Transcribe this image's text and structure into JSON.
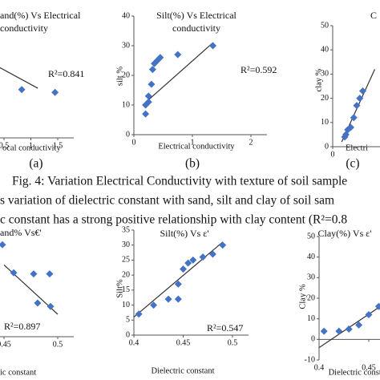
{
  "chart_data": [
    {
      "type": "scatter",
      "title": [
        "and(%) Vs Electrical",
        "conductivity"
      ],
      "x_label": "ocal conductivity",
      "panel": "(a)",
      "r2_label": "R²=0.841",
      "color": "#4472c4",
      "xlim": [
        0.5,
        1.5
      ],
      "ylim": [
        0,
        100
      ],
      "xticks": [
        0.5,
        1,
        1.5
      ],
      "x": [
        0.83,
        1.45
      ],
      "y": [
        35,
        33
      ],
      "trendline": {
        "x": [
          0.42,
          1.13
        ],
        "y": [
          51,
          36
        ]
      }
    },
    {
      "type": "scatter",
      "title": [
        "Silt(%) Vs Electrical",
        "conductivity"
      ],
      "x_label": "Electrical conductivity",
      "y_label": "silt %",
      "panel": "(b)",
      "r2_label": "R²=0.592",
      "color": "#4472c4",
      "xlim": [
        0,
        2
      ],
      "ylim": [
        0,
        40
      ],
      "xticks": [
        0,
        1,
        2
      ],
      "yticks": [
        0,
        10,
        20,
        30,
        40
      ],
      "x": [
        0.2,
        0.2,
        0.25,
        0.25,
        0.3,
        0.32,
        0.35,
        0.4,
        0.45,
        0.75,
        1.35
      ],
      "y": [
        7,
        10,
        11,
        13,
        17,
        22,
        24,
        25,
        26,
        27,
        30
      ],
      "trendline": {
        "x": [
          0.15,
          1.35
        ],
        "y": [
          10,
          31
        ]
      }
    },
    {
      "type": "scatter",
      "title": [
        "C"
      ],
      "x_label": "Electri",
      "y_label": "clay %",
      "panel": "(c)",
      "color": "#4472c4",
      "xlim": [
        0,
        1
      ],
      "ylim": [
        0,
        50
      ],
      "xticks": [
        0
      ],
      "yticks": [
        0,
        10,
        20,
        30,
        40,
        50
      ],
      "x": [
        0.2,
        0.22,
        0.25,
        0.3,
        0.35,
        0.4,
        0.45,
        0.5
      ],
      "y": [
        4,
        5,
        7,
        8,
        12,
        17,
        20,
        23
      ],
      "trendline": {
        "x": [
          0.15,
          0.7
        ],
        "y": [
          2,
          32
        ]
      }
    },
    {
      "type": "scatter",
      "title": [
        "and% Vs€'"
      ],
      "x_label": "ic constant",
      "r2_label": "R²=0.897",
      "color": "#4472c4",
      "xlim": [
        0.45,
        0.5
      ],
      "ylim": [
        0,
        100
      ],
      "xticks": [
        0.45,
        0.5
      ],
      "x": [
        0.4485,
        0.459,
        0.4776,
        0.4925,
        0.4813,
        0.4933
      ],
      "y": [
        82,
        57,
        56,
        56,
        30,
        27
      ],
      "trendline": {
        "x": [
          0.45,
          0.5
        ],
        "y": [
          64,
          20
        ]
      }
    },
    {
      "type": "scatter",
      "title": [
        "Silt(%) Vs ε'"
      ],
      "x_label": "Dielectric constant",
      "y_label": "Silt%",
      "r2_label": "R²=0.547",
      "color": "#4472c4",
      "xlim": [
        0.4,
        0.5
      ],
      "ylim": [
        0,
        35
      ],
      "xticks": [
        0.4,
        0.45,
        0.5
      ],
      "yticks": [
        0,
        5,
        10,
        15,
        20,
        25,
        30,
        35
      ],
      "x": [
        0.405,
        0.42,
        0.435,
        0.445,
        0.445,
        0.45,
        0.455,
        0.46,
        0.47,
        0.48,
        0.49
      ],
      "y": [
        7,
        10,
        12,
        12,
        17,
        22,
        24,
        25,
        26,
        27,
        30
      ],
      "trendline": {
        "x": [
          0.4,
          0.49
        ],
        "y": [
          6,
          31
        ]
      }
    },
    {
      "type": "scatter",
      "title": [
        "Clay(%) Vs ε'"
      ],
      "x_label": "Dielectric consta",
      "y_label": "Clay %",
      "color": "#4472c4",
      "xlim": [
        0.4,
        0.5
      ],
      "ylim": [
        -10,
        50
      ],
      "xticks": [
        0.4,
        0.45
      ],
      "yticks": [
        -10,
        0,
        10,
        20,
        30,
        40,
        50
      ],
      "x": [
        0.405,
        0.42,
        0.43,
        0.44,
        0.45,
        0.46,
        0.465,
        0.475
      ],
      "y": [
        4,
        4,
        5,
        7,
        12,
        16,
        19,
        20
      ],
      "trendline": {
        "x": [
          0.4,
          0.48
        ],
        "y": [
          -4,
          22
        ]
      }
    }
  ],
  "caption": "Fig. 4: Variation Electrical Conductivity with texture of soil sample",
  "body_lines": [
    "s variation of dielectric constant with sand, silt and clay of soil sam",
    "c constant has a strong positive relationship with clay content (R²=0.8"
  ]
}
